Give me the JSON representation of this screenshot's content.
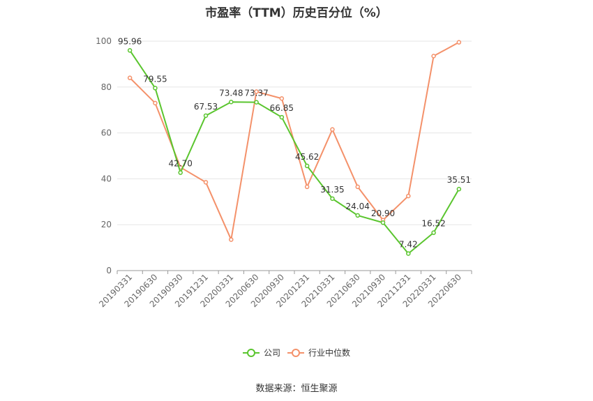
{
  "title": "市盈率（TTM）历史百分位（%）",
  "source": "数据来源：恒生聚源",
  "colors": {
    "company": "#5ac52e",
    "industry": "#f4916a",
    "grid": "#e6e6e6",
    "axis": "#999999"
  },
  "chart_data": {
    "type": "line",
    "title": "市盈率（TTM）历史百分位（%）",
    "xlabel": "",
    "ylabel": "",
    "ylim": [
      0,
      100
    ],
    "yticks": [
      0,
      20,
      40,
      60,
      80,
      100
    ],
    "grid": true,
    "legend_position": "bottom",
    "categories": [
      "20190331",
      "20190630",
      "20190930",
      "20191231",
      "20200331",
      "20200630",
      "20200930",
      "20201231",
      "20210331",
      "20210630",
      "20210930",
      "20211231",
      "20220331",
      "20220630"
    ],
    "series": [
      {
        "name": "公司",
        "values": [
          95.96,
          79.55,
          42.7,
          67.53,
          73.48,
          73.37,
          66.85,
          45.62,
          31.35,
          24.04,
          20.9,
          7.42,
          16.52,
          35.51
        ],
        "labels": [
          "95.96",
          "79.55",
          "42.70",
          "67.53",
          "73.48",
          "73.37",
          "66.85",
          "45.62",
          "31.35",
          "24.04",
          "20.90",
          "7.42",
          "16.52",
          "35.51"
        ]
      },
      {
        "name": "行业中位数",
        "values": [
          84,
          73,
          45,
          38.5,
          13.5,
          78,
          75,
          36.5,
          61.5,
          36.5,
          22,
          32.5,
          93.5,
          99.5
        ]
      }
    ]
  }
}
